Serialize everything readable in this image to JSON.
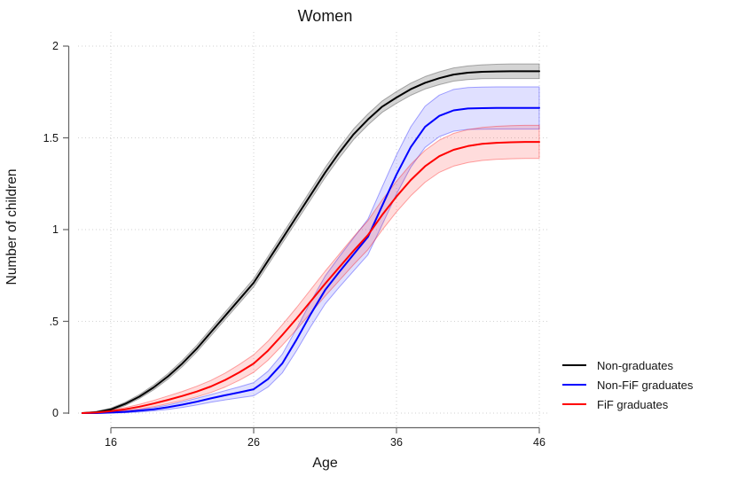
{
  "title": "Women",
  "axes": {
    "x_label": "Age",
    "y_label": "Number of children",
    "x_ticks": [
      16,
      26,
      36,
      46
    ],
    "y_ticks": [
      "0",
      ".5",
      "1",
      "1.5",
      "2"
    ]
  },
  "legend": {
    "entries": [
      {
        "label": "Non-graduates",
        "color": "#000000"
      },
      {
        "label": "Non-FiF graduates",
        "color": "#0000ff"
      },
      {
        "label": "FiF graduates",
        "color": "#ff0000"
      }
    ]
  },
  "colors": {
    "grid": "#d2d2d2",
    "axis": "#636363",
    "text": "#141414",
    "band_gray_fill": "rgba(125,125,125,0.33)",
    "band_gray_edge": "rgba(80,80,80,0.45)",
    "band_blue_fill": "rgba(60,60,255,0.16)",
    "band_blue_edge": "rgba(0,0,255,0.35)",
    "band_red_fill": "rgba(255,40,40,0.16)",
    "band_red_edge": "rgba(255,0,0,0.35)"
  },
  "chart_data": {
    "type": "line",
    "title": "Women",
    "xlabel": "Age",
    "ylabel": "Number of children",
    "xlim": [
      14,
      46
    ],
    "ylim": [
      0,
      2
    ],
    "grid": "dotted both axes at ticks",
    "legend_position": "right-bottom outside",
    "x_ticks": [
      16,
      26,
      36,
      46
    ],
    "y_ticks": [
      0,
      0.5,
      1,
      1.5,
      2
    ],
    "x": [
      14,
      15,
      16,
      17,
      18,
      19,
      20,
      21,
      22,
      23,
      24,
      25,
      26,
      27,
      28,
      29,
      30,
      31,
      32,
      33,
      34,
      35,
      36,
      37,
      38,
      39,
      40,
      41,
      42,
      43,
      44,
      45,
      46
    ],
    "series": [
      {
        "name": "Non-graduates",
        "color": "#000000",
        "band_fill": "band_gray_fill",
        "band_edge": "band_gray_edge",
        "values": [
          0,
          0.005,
          0.02,
          0.05,
          0.09,
          0.14,
          0.2,
          0.27,
          0.35,
          0.44,
          0.53,
          0.62,
          0.71,
          0.83,
          0.95,
          1.07,
          1.19,
          1.31,
          1.42,
          1.52,
          1.6,
          1.67,
          1.72,
          1.765,
          1.8,
          1.825,
          1.845,
          1.855,
          1.86,
          1.862,
          1.863,
          1.863,
          1.863
        ],
        "ci_low": [
          0,
          0,
          0.013,
          0.041,
          0.079,
          0.127,
          0.185,
          0.253,
          0.332,
          0.421,
          0.51,
          0.599,
          0.688,
          0.807,
          0.926,
          1.045,
          1.164,
          1.283,
          1.392,
          1.491,
          1.57,
          1.639,
          1.688,
          1.732,
          1.766,
          1.79,
          1.809,
          1.818,
          1.822,
          1.823,
          1.823,
          1.823,
          1.823
        ],
        "ci_high": [
          0,
          0.01,
          0.027,
          0.059,
          0.101,
          0.153,
          0.215,
          0.287,
          0.368,
          0.459,
          0.55,
          0.641,
          0.732,
          0.853,
          0.974,
          1.095,
          1.216,
          1.337,
          1.448,
          1.549,
          1.63,
          1.701,
          1.752,
          1.798,
          1.834,
          1.86,
          1.881,
          1.892,
          1.898,
          1.901,
          1.903,
          1.903,
          1.903
        ]
      },
      {
        "name": "Non-FiF graduates",
        "color": "#0000ff",
        "band_fill": "band_blue_fill",
        "band_edge": "band_blue_edge",
        "values": [
          0,
          0,
          0.003,
          0.007,
          0.013,
          0.021,
          0.032,
          0.046,
          0.062,
          0.08,
          0.097,
          0.113,
          0.13,
          0.185,
          0.27,
          0.4,
          0.54,
          0.67,
          0.77,
          0.865,
          0.96,
          1.13,
          1.3,
          1.45,
          1.56,
          1.62,
          1.65,
          1.66,
          1.662,
          1.663,
          1.663,
          1.663,
          1.663
        ],
        "ci_low": [
          0,
          0,
          0,
          0.002,
          0.006,
          0.012,
          0.02,
          0.031,
          0.044,
          0.059,
          0.072,
          0.083,
          0.094,
          0.142,
          0.219,
          0.34,
          0.472,
          0.594,
          0.687,
          0.775,
          0.863,
          1.027,
          1.193,
          1.34,
          1.448,
          1.507,
          1.536,
          1.546,
          1.547,
          1.548,
          1.548,
          1.548,
          1.548
        ],
        "ci_high": [
          0,
          0.002,
          0.007,
          0.013,
          0.02,
          0.03,
          0.044,
          0.061,
          0.08,
          0.101,
          0.122,
          0.143,
          0.166,
          0.228,
          0.321,
          0.46,
          0.608,
          0.746,
          0.853,
          0.955,
          1.057,
          1.233,
          1.407,
          1.56,
          1.672,
          1.733,
          1.764,
          1.774,
          1.777,
          1.778,
          1.778,
          1.778,
          1.778
        ]
      },
      {
        "name": "FiF graduates",
        "color": "#ff0000",
        "band_fill": "band_red_fill",
        "band_edge": "band_red_edge",
        "values": [
          0,
          0.003,
          0.01,
          0.021,
          0.035,
          0.052,
          0.072,
          0.093,
          0.117,
          0.145,
          0.18,
          0.222,
          0.27,
          0.34,
          0.425,
          0.515,
          0.61,
          0.705,
          0.795,
          0.885,
          0.97,
          1.08,
          1.18,
          1.27,
          1.345,
          1.4,
          1.435,
          1.455,
          1.467,
          1.473,
          1.476,
          1.478,
          1.478
        ],
        "ci_low": [
          0,
          0,
          0.004,
          0.012,
          0.022,
          0.035,
          0.051,
          0.068,
          0.088,
          0.112,
          0.142,
          0.179,
          0.222,
          0.288,
          0.369,
          0.455,
          0.546,
          0.637,
          0.723,
          0.809,
          0.891,
          0.998,
          1.096,
          1.184,
          1.258,
          1.312,
          1.346,
          1.365,
          1.377,
          1.383,
          1.386,
          1.388,
          1.388
        ],
        "ci_high": [
          0,
          0.006,
          0.016,
          0.03,
          0.048,
          0.069,
          0.093,
          0.118,
          0.146,
          0.178,
          0.218,
          0.265,
          0.318,
          0.392,
          0.481,
          0.575,
          0.674,
          0.773,
          0.867,
          0.961,
          1.049,
          1.162,
          1.264,
          1.356,
          1.432,
          1.488,
          1.524,
          1.545,
          1.557,
          1.563,
          1.566,
          1.568,
          1.568
        ]
      }
    ]
  }
}
